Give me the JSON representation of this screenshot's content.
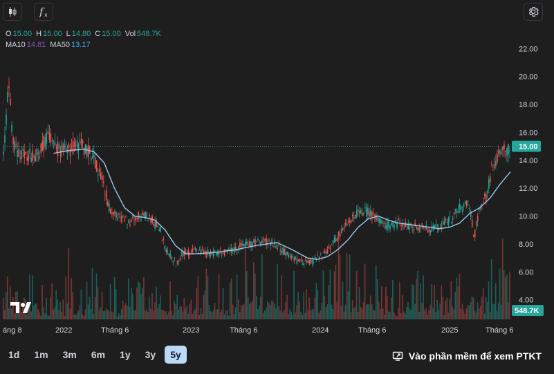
{
  "toolbar": {
    "indicators_icon": "candlestick-icon",
    "function_icon": "fx-icon",
    "settings_icon": "gear-icon"
  },
  "legend": {
    "o_label": "O",
    "o_value": "15.00",
    "h_label": "H",
    "h_value": "15.00",
    "l_label": "L",
    "l_value": "14.80",
    "c_label": "C",
    "c_value": "15.00",
    "vol_label": "Vol",
    "vol_value": "548.7K",
    "ma10_label": "MA10",
    "ma10_value": "14.81",
    "ma50_label": "MA50",
    "ma50_value": "13.17"
  },
  "chart_data": {
    "type": "candlestick",
    "y_ticks": [
      "22.00",
      "20.00",
      "18.00",
      "16.00",
      "14.00",
      "12.00",
      "10.00",
      "8.00",
      "6.00",
      "4.00"
    ],
    "x_ticks": [
      "áng 8",
      "2022",
      "Tháng 6",
      "2023",
      "Tháng 6",
      "2024",
      "Tháng 6",
      "2025",
      "Tháng 6"
    ],
    "ylim": [
      2.6,
      23.5
    ],
    "last_price": 15.0,
    "last_price_label": "15.00",
    "last_volume_label": "548.7K",
    "price_path": [
      [
        0,
        14.2
      ],
      [
        0.01,
        19.5
      ],
      [
        0.02,
        15.0
      ],
      [
        0.04,
        14.3
      ],
      [
        0.07,
        14.5
      ],
      [
        0.09,
        16.0
      ],
      [
        0.1,
        14.8
      ],
      [
        0.13,
        14.7
      ],
      [
        0.15,
        15.2
      ],
      [
        0.17,
        14.6
      ],
      [
        0.18,
        14.0
      ],
      [
        0.2,
        12.0
      ],
      [
        0.21,
        10.5
      ],
      [
        0.23,
        9.8
      ],
      [
        0.25,
        9.6
      ],
      [
        0.27,
        10.1
      ],
      [
        0.29,
        9.8
      ],
      [
        0.31,
        9.0
      ],
      [
        0.32,
        7.5
      ],
      [
        0.34,
        6.6
      ],
      [
        0.355,
        7.3
      ],
      [
        0.38,
        7.6
      ],
      [
        0.41,
        7.3
      ],
      [
        0.44,
        7.4
      ],
      [
        0.47,
        7.9
      ],
      [
        0.5,
        8.1
      ],
      [
        0.52,
        8.2
      ],
      [
        0.54,
        7.9
      ],
      [
        0.56,
        7.3
      ],
      [
        0.58,
        6.8
      ],
      [
        0.6,
        6.6
      ],
      [
        0.62,
        7.0
      ],
      [
        0.64,
        7.5
      ],
      [
        0.66,
        8.5
      ],
      [
        0.68,
        9.6
      ],
      [
        0.7,
        10.2
      ],
      [
        0.72,
        10.4
      ],
      [
        0.74,
        9.6
      ],
      [
        0.76,
        9.3
      ],
      [
        0.78,
        9.5
      ],
      [
        0.8,
        9.3
      ],
      [
        0.82,
        9.2
      ],
      [
        0.84,
        9.1
      ],
      [
        0.86,
        9.2
      ],
      [
        0.88,
        9.6
      ],
      [
        0.9,
        10.5
      ],
      [
        0.92,
        10.9
      ],
      [
        0.93,
        8.5
      ],
      [
        0.94,
        10.5
      ],
      [
        0.955,
        11.5
      ],
      [
        0.965,
        13.5
      ],
      [
        0.975,
        14.2
      ],
      [
        0.985,
        14.5
      ],
      [
        1.0,
        15.0
      ]
    ],
    "ma50_path": [
      [
        0.1,
        14.5
      ],
      [
        0.13,
        14.7
      ],
      [
        0.16,
        14.8
      ],
      [
        0.18,
        14.6
      ],
      [
        0.2,
        13.8
      ],
      [
        0.22,
        12.0
      ],
      [
        0.24,
        10.6
      ],
      [
        0.26,
        10.0
      ],
      [
        0.28,
        9.9
      ],
      [
        0.3,
        9.7
      ],
      [
        0.32,
        9.0
      ],
      [
        0.34,
        7.9
      ],
      [
        0.36,
        7.3
      ],
      [
        0.38,
        7.3
      ],
      [
        0.42,
        7.4
      ],
      [
        0.46,
        7.6
      ],
      [
        0.5,
        7.9
      ],
      [
        0.54,
        8.1
      ],
      [
        0.57,
        7.6
      ],
      [
        0.6,
        7.0
      ],
      [
        0.62,
        6.9
      ],
      [
        0.64,
        7.1
      ],
      [
        0.66,
        7.6
      ],
      [
        0.68,
        8.3
      ],
      [
        0.7,
        9.2
      ],
      [
        0.72,
        9.8
      ],
      [
        0.74,
        10.0
      ],
      [
        0.76,
        9.7
      ],
      [
        0.78,
        9.5
      ],
      [
        0.82,
        9.3
      ],
      [
        0.86,
        9.1
      ],
      [
        0.88,
        9.2
      ],
      [
        0.9,
        9.5
      ],
      [
        0.92,
        10.2
      ],
      [
        0.94,
        10.6
      ],
      [
        0.96,
        11.3
      ],
      [
        0.98,
        12.3
      ],
      [
        1.0,
        13.17
      ]
    ]
  },
  "timeframes": [
    "1d",
    "1m",
    "3m",
    "6m",
    "1y",
    "3y",
    "5y"
  ],
  "active_timeframe": "5y",
  "ptkt_label": "Vào phần mềm để xem PTKT"
}
